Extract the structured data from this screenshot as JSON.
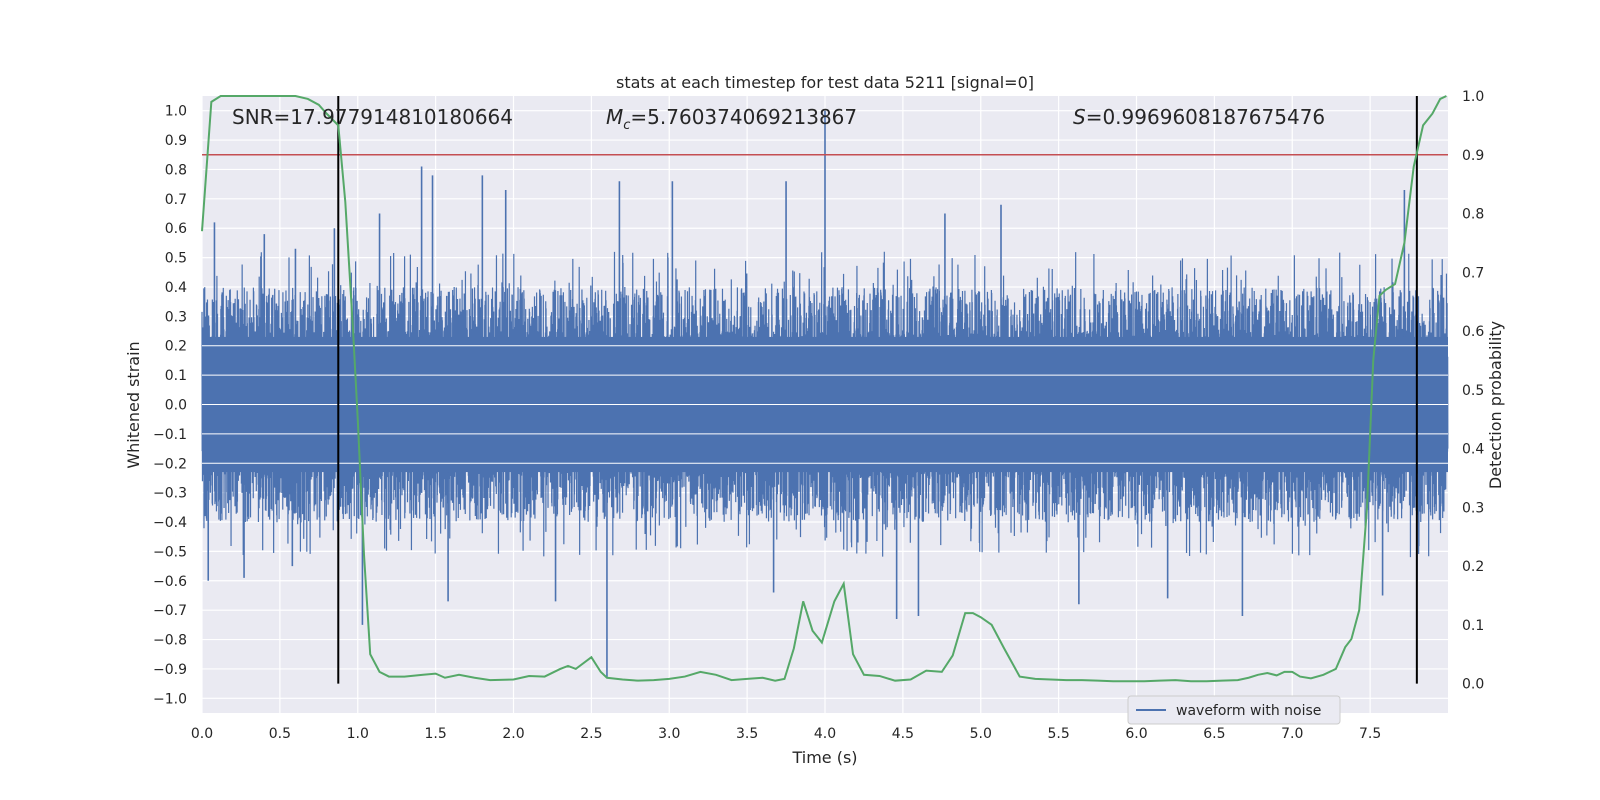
{
  "chart_data": {
    "type": "line",
    "title": "stats at each timestep for test data 5211 [signal=0]",
    "xlabel": "Time (s)",
    "ylabel_left": "Whitened strain",
    "ylabel_right": "Detection probability",
    "xlim": [
      0.0,
      8.0
    ],
    "ylim_left": [
      -1.05,
      1.05
    ],
    "ylim_right": [
      -0.05,
      1.0
    ],
    "x_ticks": [
      "0.0",
      "0.5",
      "1.0",
      "1.5",
      "2.0",
      "2.5",
      "3.0",
      "3.5",
      "4.0",
      "4.5",
      "5.0",
      "5.5",
      "6.0",
      "6.5",
      "7.0",
      "7.5"
    ],
    "y_ticks_left": [
      "−1.0",
      "−0.9",
      "−0.8",
      "−0.7",
      "−0.6",
      "−0.5",
      "−0.4",
      "−0.3",
      "−0.2",
      "−0.1",
      "0.0",
      "0.1",
      "0.2",
      "0.3",
      "0.4",
      "0.5",
      "0.6",
      "0.7",
      "0.8",
      "0.9",
      "1.0"
    ],
    "y_ticks_right": [
      "0.0",
      "0.1",
      "0.2",
      "0.3",
      "0.4",
      "0.5",
      "0.6",
      "0.7",
      "0.8",
      "0.9",
      "1.0"
    ],
    "grid": true,
    "legend_placement": "lower-right",
    "annotations": {
      "snr": "SNR=17.977914810180664",
      "mc_symbol": "M",
      "mc_sub": "c",
      "mc_value": "=5.760374069213867",
      "s_symbol": "S",
      "s_value": "=0.9969608187675476"
    },
    "threshold": {
      "value": 0.9,
      "axis": "right",
      "color": "#c44e52"
    },
    "vertical_lines": [
      {
        "x": 0.875,
        "y_range": [
          0.0,
          1.0
        ],
        "color": "#000000"
      },
      {
        "x": 7.8,
        "y_range": [
          0.0,
          1.0
        ],
        "color": "#000000"
      }
    ],
    "series": [
      {
        "name": "waveform with noise",
        "axis": "left",
        "color": "#4c72b0",
        "kind": "noise",
        "sample_rate_hz": 2048,
        "duration_s": 8.0,
        "core_amplitude": 0.25,
        "typical_peak": 0.4,
        "peaks": [
          [
            0.08,
            0.62
          ],
          [
            0.4,
            0.58
          ],
          [
            0.6,
            0.53
          ],
          [
            0.85,
            0.6
          ],
          [
            0.04,
            -0.6
          ],
          [
            0.27,
            -0.59
          ],
          [
            0.58,
            -0.55
          ],
          [
            1.03,
            -0.75
          ],
          [
            1.14,
            0.65
          ],
          [
            1.41,
            0.81
          ],
          [
            1.48,
            0.78
          ],
          [
            1.58,
            -0.67
          ],
          [
            1.8,
            0.78
          ],
          [
            1.95,
            0.73
          ],
          [
            2.27,
            -0.67
          ],
          [
            2.6,
            -0.93
          ],
          [
            2.68,
            0.76
          ],
          [
            3.02,
            0.76
          ],
          [
            3.67,
            -0.64
          ],
          [
            3.75,
            0.76
          ],
          [
            4.0,
            1.0
          ],
          [
            4.46,
            -0.73
          ],
          [
            4.6,
            -0.72
          ],
          [
            4.77,
            0.65
          ],
          [
            5.13,
            0.68
          ],
          [
            5.63,
            -0.68
          ],
          [
            6.2,
            -0.66
          ],
          [
            6.68,
            -0.72
          ],
          [
            7.58,
            -0.65
          ],
          [
            7.72,
            0.73
          ],
          [
            7.8,
            -0.6
          ]
        ]
      },
      {
        "name": "Detection probability",
        "axis": "right",
        "color": "#55a868",
        "kind": "line",
        "x": [
          0.0,
          0.06,
          0.12,
          0.2,
          0.3,
          0.4,
          0.5,
          0.6,
          0.68,
          0.75,
          0.8,
          0.875,
          0.92,
          0.97,
          1.0,
          1.04,
          1.08,
          1.14,
          1.2,
          1.3,
          1.42,
          1.5,
          1.56,
          1.65,
          1.75,
          1.85,
          2.0,
          2.1,
          2.2,
          2.3,
          2.35,
          2.4,
          2.5,
          2.56,
          2.6,
          2.7,
          2.8,
          2.9,
          3.0,
          3.1,
          3.2,
          3.3,
          3.4,
          3.5,
          3.6,
          3.68,
          3.74,
          3.8,
          3.86,
          3.92,
          3.98,
          4.06,
          4.12,
          4.18,
          4.25,
          4.35,
          4.45,
          4.55,
          4.65,
          4.75,
          4.82,
          4.9,
          4.95,
          5.0,
          5.07,
          5.15,
          5.25,
          5.35,
          5.45,
          5.55,
          5.65,
          5.75,
          5.85,
          5.95,
          6.05,
          6.15,
          6.25,
          6.35,
          6.45,
          6.55,
          6.65,
          6.72,
          6.78,
          6.84,
          6.9,
          6.95,
          7.0,
          7.05,
          7.12,
          7.2,
          7.28,
          7.34,
          7.38,
          7.43,
          7.48,
          7.52,
          7.56,
          7.6,
          7.66,
          7.72,
          7.78,
          7.84,
          7.9,
          7.95,
          7.99
        ],
        "y": [
          0.77,
          0.99,
          1.0,
          1.0,
          1.0,
          1.0,
          1.0,
          1.0,
          0.995,
          0.985,
          0.97,
          0.95,
          0.82,
          0.6,
          0.45,
          0.22,
          0.05,
          0.02,
          0.012,
          0.012,
          0.015,
          0.017,
          0.01,
          0.015,
          0.01,
          0.006,
          0.007,
          0.013,
          0.012,
          0.025,
          0.03,
          0.025,
          0.045,
          0.02,
          0.01,
          0.007,
          0.005,
          0.006,
          0.008,
          0.012,
          0.02,
          0.015,
          0.006,
          0.008,
          0.01,
          0.005,
          0.008,
          0.06,
          0.14,
          0.09,
          0.07,
          0.14,
          0.17,
          0.05,
          0.015,
          0.013,
          0.005,
          0.007,
          0.022,
          0.02,
          0.048,
          0.12,
          0.12,
          0.113,
          0.1,
          0.06,
          0.012,
          0.008,
          0.007,
          0.006,
          0.006,
          0.005,
          0.004,
          0.004,
          0.004,
          0.005,
          0.006,
          0.004,
          0.004,
          0.005,
          0.006,
          0.01,
          0.015,
          0.018,
          0.014,
          0.02,
          0.02,
          0.012,
          0.009,
          0.015,
          0.025,
          0.062,
          0.076,
          0.125,
          0.3,
          0.55,
          0.66,
          0.67,
          0.68,
          0.75,
          0.88,
          0.95,
          0.97,
          0.995,
          1.0
        ]
      }
    ]
  }
}
